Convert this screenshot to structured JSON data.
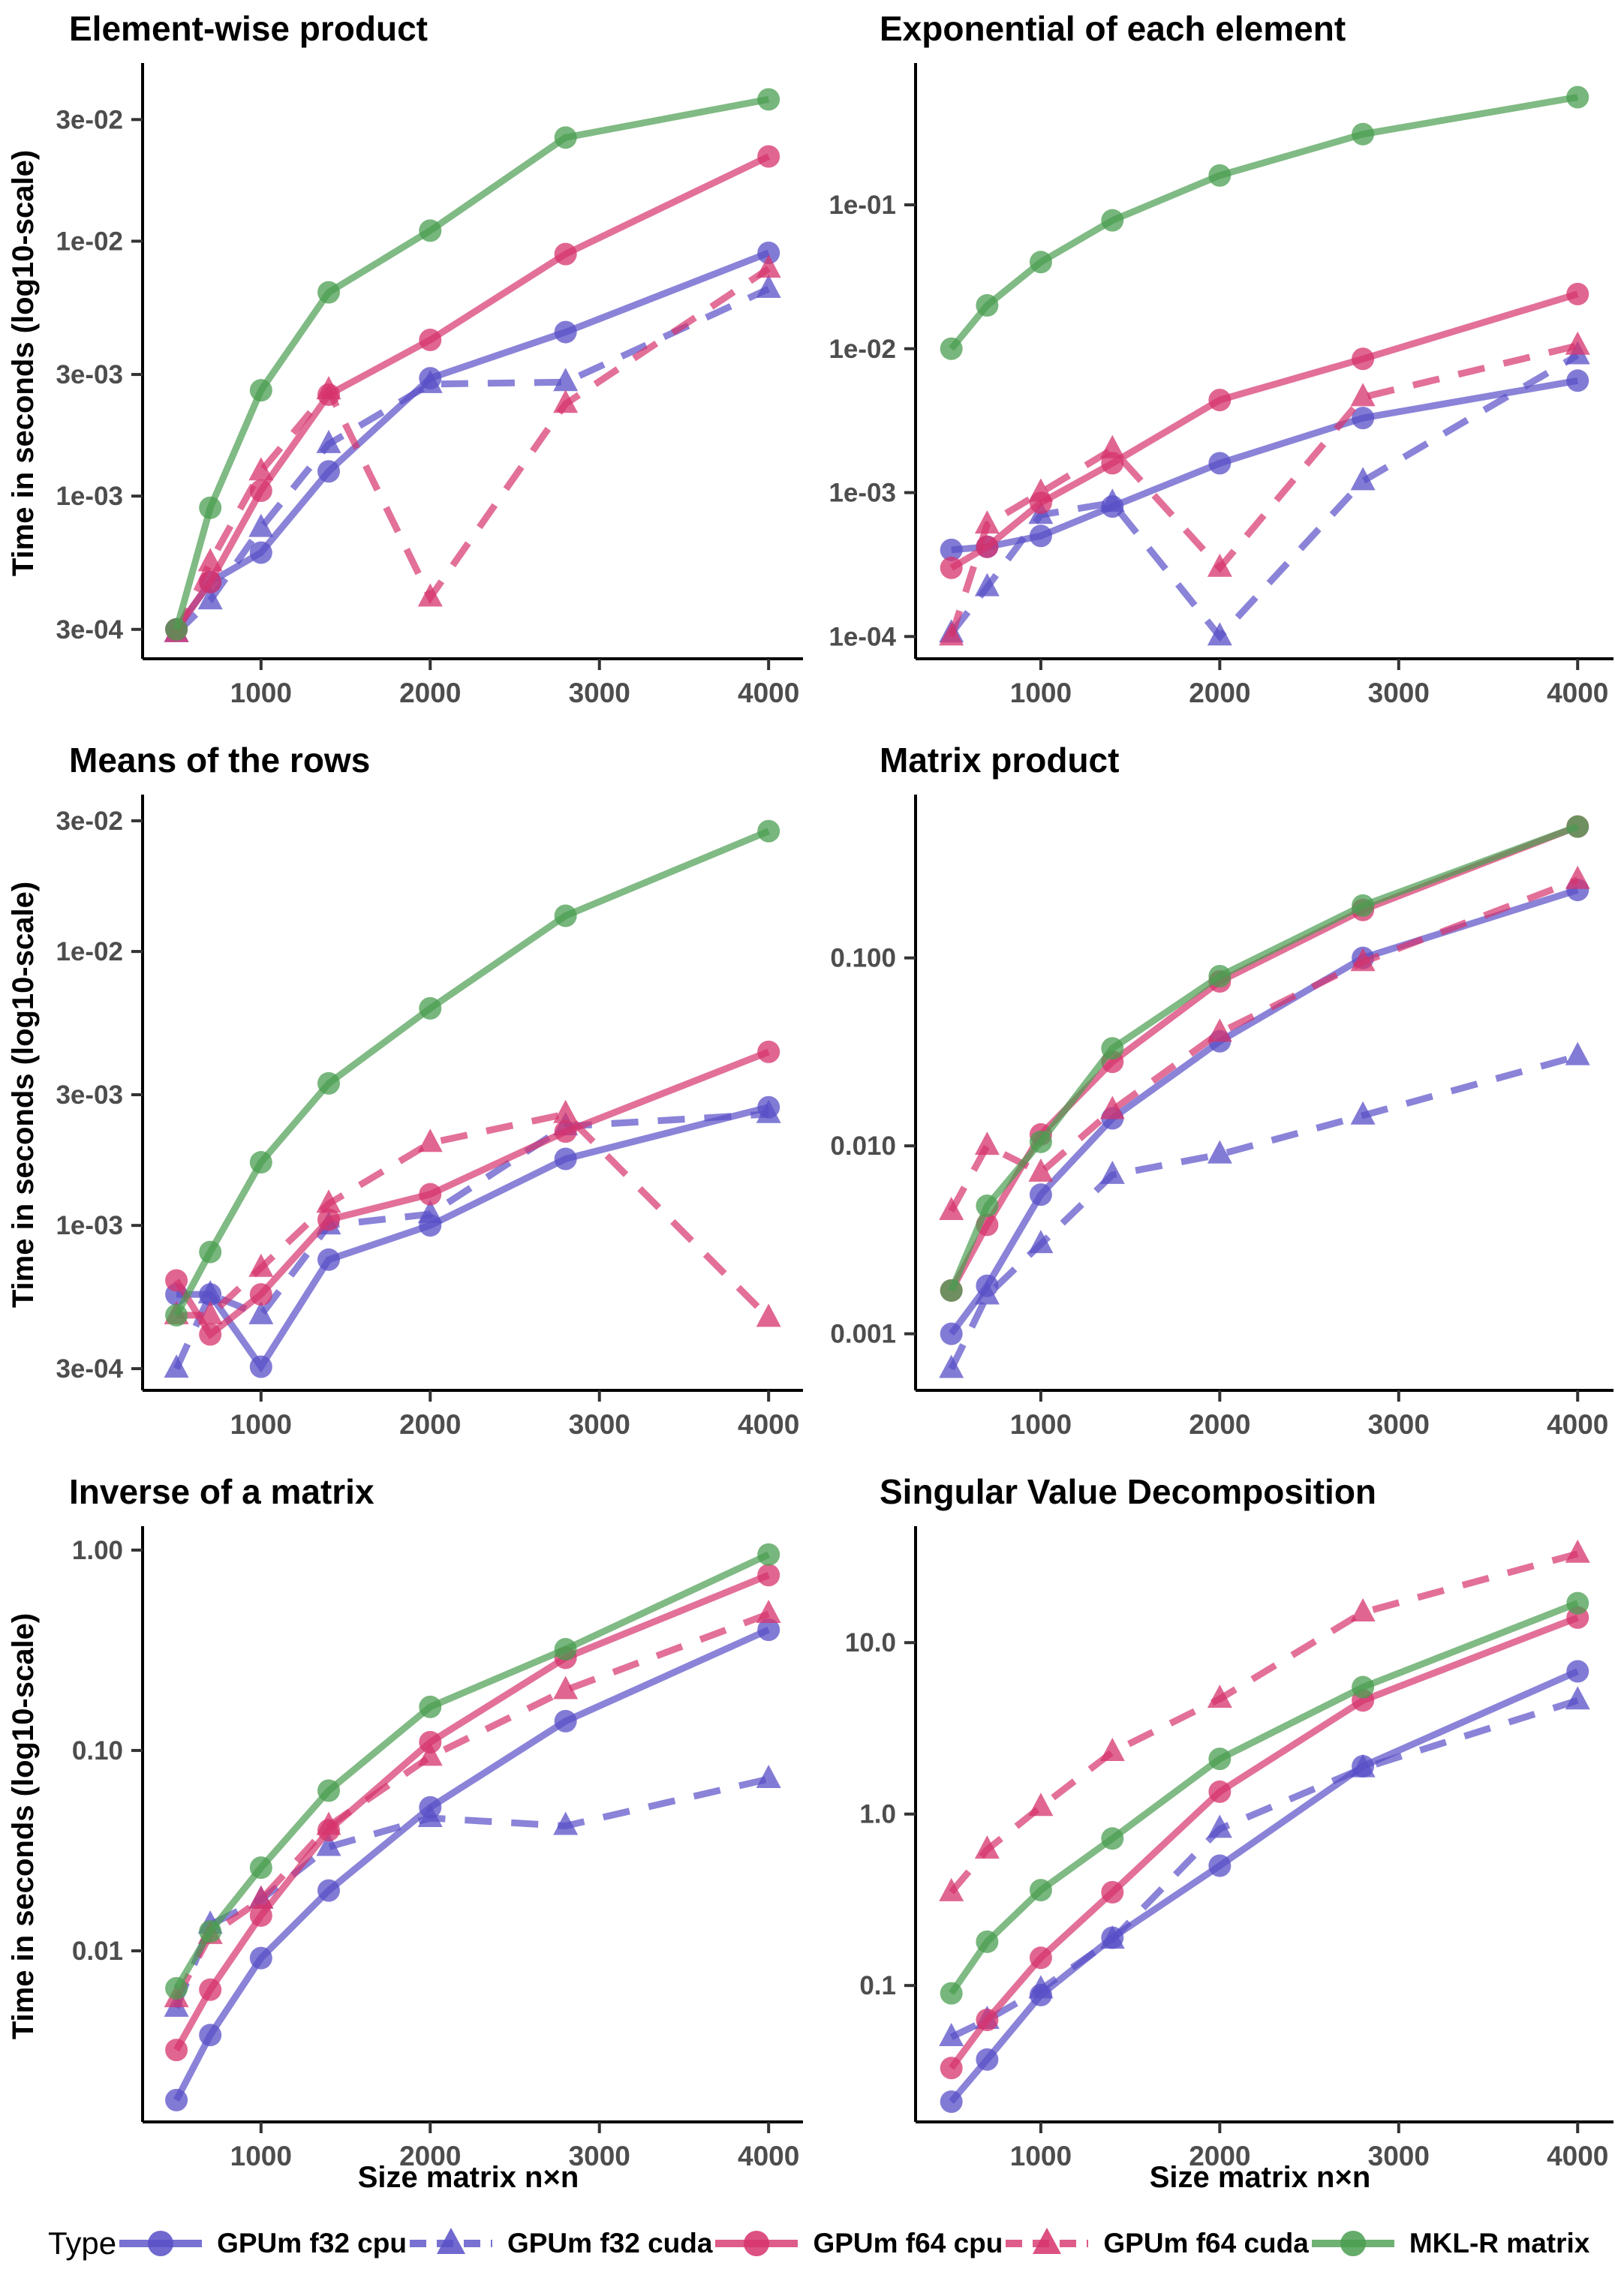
{
  "legend": {
    "title": "Type",
    "entries": [
      {
        "label": "GPUm f32 cpu",
        "color": "#584fc7",
        "marker": "circle",
        "line": "solid"
      },
      {
        "label": "GPUm f32 cuda",
        "color": "#584fc7",
        "marker": "triangle",
        "line": "dashed"
      },
      {
        "label": "GPUm f64 cpu",
        "color": "#d6336c",
        "marker": "circle",
        "line": "solid"
      },
      {
        "label": "GPUm f64 cuda",
        "color": "#d6336c",
        "marker": "triangle",
        "line": "dashed"
      },
      {
        "label": "MKL-R matrix",
        "color": "#4a9d50",
        "marker": "circle",
        "line": "solid"
      }
    ]
  },
  "shared": {
    "xlabel": "Size matrix n×n",
    "ylabel": "Time in seconds (log10-scale)",
    "x_ticks": [
      1000,
      2000,
      3000,
      4000
    ],
    "xlim": [
      300,
      4150
    ],
    "tick_color": "#4d4d4d",
    "axis_color": "#000000"
  },
  "chart_data": [
    {
      "type": "line",
      "title": "Element-wise product",
      "ylabel": "Time in seconds (log10-scale)",
      "xlabel": "",
      "yscale": "log10",
      "ylim": [
        0.00023,
        0.048
      ],
      "yticks": [
        {
          "v": 0.03,
          "label": "3e-02"
        },
        {
          "v": 0.01,
          "label": "1e-02"
        },
        {
          "v": 0.003,
          "label": "3e-03"
        },
        {
          "v": 0.001,
          "label": "1e-03"
        },
        {
          "v": 0.0003,
          "label": "3e-04"
        }
      ],
      "x": [
        500,
        700,
        1000,
        1400,
        2000,
        2800,
        4000
      ],
      "series": [
        {
          "name": "GPUm f32 cpu",
          "values": [
            0.0003,
            0.00046,
            0.0006,
            0.00125,
            0.0029,
            0.0044,
            0.009
          ]
        },
        {
          "name": "GPUm f32 cuda",
          "values": [
            0.00029,
            0.00039,
            0.00075,
            0.0016,
            0.00275,
            0.0028,
            0.0065
          ]
        },
        {
          "name": "GPUm f64 cpu",
          "values": [
            0.0003,
            0.00046,
            0.00105,
            0.0025,
            0.0041,
            0.0089,
            0.0215
          ]
        },
        {
          "name": "GPUm f64 cuda",
          "values": [
            0.00029,
            0.00055,
            0.00125,
            0.0026,
            0.0004,
            0.0023,
            0.0078
          ]
        },
        {
          "name": "MKL-R matrix",
          "values": [
            0.0003,
            0.0009,
            0.0026,
            0.0063,
            0.011,
            0.0255,
            0.036
          ]
        }
      ]
    },
    {
      "type": "line",
      "title": "Exponential of each element",
      "ylabel": "",
      "xlabel": "",
      "yscale": "log10",
      "ylim": [
        7e-05,
        0.9
      ],
      "yticks": [
        {
          "v": 0.1,
          "label": "1e-01"
        },
        {
          "v": 0.01,
          "label": "1e-02"
        },
        {
          "v": 0.001,
          "label": "1e-03"
        },
        {
          "v": 0.0001,
          "label": "1e-04"
        }
      ],
      "x": [
        500,
        700,
        1000,
        1400,
        2000,
        2800,
        4000
      ],
      "series": [
        {
          "name": "GPUm f32 cpu",
          "values": [
            0.0004,
            0.00042,
            0.0005,
            0.0008,
            0.0016,
            0.0033,
            0.006
          ]
        },
        {
          "name": "GPUm f32 cuda",
          "values": [
            0.000105,
            0.00022,
            0.0007,
            0.00085,
            0.0001,
            0.0012,
            0.009
          ]
        },
        {
          "name": "GPUm f64 cpu",
          "values": [
            0.0003,
            0.00042,
            0.00085,
            0.0016,
            0.0044,
            0.0085,
            0.024
          ]
        },
        {
          "name": "GPUm f64 cuda",
          "values": [
            0.0001,
            0.0006,
            0.001,
            0.002,
            0.0003,
            0.0046,
            0.0105
          ]
        },
        {
          "name": "MKL-R matrix",
          "values": [
            0.01,
            0.02,
            0.04,
            0.078,
            0.16,
            0.31,
            0.56
          ]
        }
      ]
    },
    {
      "type": "line",
      "title": "Means of the rows",
      "ylabel": "Time in seconds (log10-scale)",
      "xlabel": "",
      "yscale": "log10",
      "ylim": [
        0.00025,
        0.036
      ],
      "yticks": [
        {
          "v": 0.03,
          "label": "3e-02"
        },
        {
          "v": 0.01,
          "label": "1e-02"
        },
        {
          "v": 0.003,
          "label": "3e-03"
        },
        {
          "v": 0.001,
          "label": "1e-03"
        },
        {
          "v": 0.0003,
          "label": "3e-04"
        }
      ],
      "x": [
        500,
        700,
        1000,
        1400,
        2000,
        2800,
        4000
      ],
      "series": [
        {
          "name": "GPUm f32 cpu",
          "values": [
            0.00056,
            0.00056,
            0.000305,
            0.00075,
            0.001,
            0.00175,
            0.0027
          ]
        },
        {
          "name": "GPUm f32 cuda",
          "values": [
            0.0003,
            0.00056,
            0.00047,
            0.001,
            0.0011,
            0.0023,
            0.00255
          ]
        },
        {
          "name": "GPUm f64 cpu",
          "values": [
            0.00063,
            0.0004,
            0.00056,
            0.00105,
            0.0013,
            0.0022,
            0.0043
          ]
        },
        {
          "name": "GPUm f64 cuda",
          "values": [
            0.00047,
            0.00047,
            0.0007,
            0.0012,
            0.002,
            0.00255,
            0.00046
          ]
        },
        {
          "name": "MKL-R matrix",
          "values": [
            0.00047,
            0.0008,
            0.0017,
            0.0033,
            0.0062,
            0.0135,
            0.0275
          ]
        }
      ]
    },
    {
      "type": "line",
      "title": "Matrix product",
      "ylabel": "",
      "xlabel": "",
      "yscale": "log10",
      "ylim": [
        0.0005,
        0.7
      ],
      "yticks": [
        {
          "v": 0.1,
          "label": "0.100"
        },
        {
          "v": 0.01,
          "label": "0.010"
        },
        {
          "v": 0.001,
          "label": "0.001"
        }
      ],
      "x": [
        500,
        700,
        1000,
        1400,
        2000,
        2800,
        4000
      ],
      "series": [
        {
          "name": "GPUm f32 cpu",
          "values": [
            0.001,
            0.0018,
            0.0055,
            0.014,
            0.036,
            0.1,
            0.23
          ]
        },
        {
          "name": "GPUm f32 cuda",
          "values": [
            0.00065,
            0.0016,
            0.003,
            0.007,
            0.009,
            0.0145,
            0.03
          ]
        },
        {
          "name": "GPUm f64 cpu",
          "values": [
            0.0017,
            0.0038,
            0.0115,
            0.028,
            0.075,
            0.18,
            0.5
          ]
        },
        {
          "name": "GPUm f64 cuda",
          "values": [
            0.0045,
            0.01,
            0.0072,
            0.0155,
            0.04,
            0.095,
            0.26
          ]
        },
        {
          "name": "MKL-R matrix",
          "values": [
            0.0017,
            0.0048,
            0.0105,
            0.033,
            0.08,
            0.19,
            0.5
          ]
        }
      ]
    },
    {
      "type": "line",
      "title": "Inverse of a matrix",
      "ylabel": "Time in seconds (log10-scale)",
      "xlabel": "Size matrix n×n",
      "yscale": "log10",
      "ylim": [
        0.0014,
        1.25
      ],
      "yticks": [
        {
          "v": 1.0,
          "label": "1.00"
        },
        {
          "v": 0.1,
          "label": "0.10"
        },
        {
          "v": 0.01,
          "label": "0.01"
        }
      ],
      "x": [
        500,
        700,
        1000,
        1400,
        2000,
        2800,
        4000
      ],
      "series": [
        {
          "name": "GPUm f32 cpu",
          "values": [
            0.0018,
            0.0038,
            0.0092,
            0.02,
            0.052,
            0.14,
            0.4
          ]
        },
        {
          "name": "GPUm f32 cuda",
          "values": [
            0.0052,
            0.0135,
            0.018,
            0.033,
            0.046,
            0.042,
            0.072
          ]
        },
        {
          "name": "GPUm f64 cpu",
          "values": [
            0.0032,
            0.0064,
            0.015,
            0.04,
            0.11,
            0.29,
            0.75
          ]
        },
        {
          "name": "GPUm f64 cuda",
          "values": [
            0.0058,
            0.012,
            0.018,
            0.042,
            0.093,
            0.2,
            0.48
          ]
        },
        {
          "name": "MKL-R matrix",
          "values": [
            0.0065,
            0.0125,
            0.026,
            0.063,
            0.165,
            0.32,
            0.95
          ]
        }
      ]
    },
    {
      "type": "line",
      "title": "Singular Value Decomposition",
      "ylabel": "",
      "xlabel": "Size matrix n×n",
      "yscale": "log10",
      "ylim": [
        0.016,
        45
      ],
      "yticks": [
        {
          "v": 10.0,
          "label": "10.0"
        },
        {
          "v": 1.0,
          "label": "1.0"
        },
        {
          "v": 0.1,
          "label": "0.1"
        }
      ],
      "x": [
        500,
        700,
        1000,
        1400,
        2000,
        2800,
        4000
      ],
      "series": [
        {
          "name": "GPUm f32 cpu",
          "values": [
            0.021,
            0.037,
            0.088,
            0.19,
            0.5,
            1.9,
            6.8
          ]
        },
        {
          "name": "GPUm f32 cuda",
          "values": [
            0.05,
            0.063,
            0.095,
            0.185,
            0.82,
            1.85,
            4.6
          ]
        },
        {
          "name": "GPUm f64 cpu",
          "values": [
            0.033,
            0.063,
            0.145,
            0.35,
            1.35,
            4.6,
            14.0
          ]
        },
        {
          "name": "GPUm f64 cuda",
          "values": [
            0.35,
            0.62,
            1.1,
            2.3,
            4.7,
            15.0,
            33.0
          ]
        },
        {
          "name": "MKL-R matrix",
          "values": [
            0.09,
            0.18,
            0.36,
            0.72,
            2.1,
            5.5,
            17.0
          ]
        }
      ]
    }
  ]
}
